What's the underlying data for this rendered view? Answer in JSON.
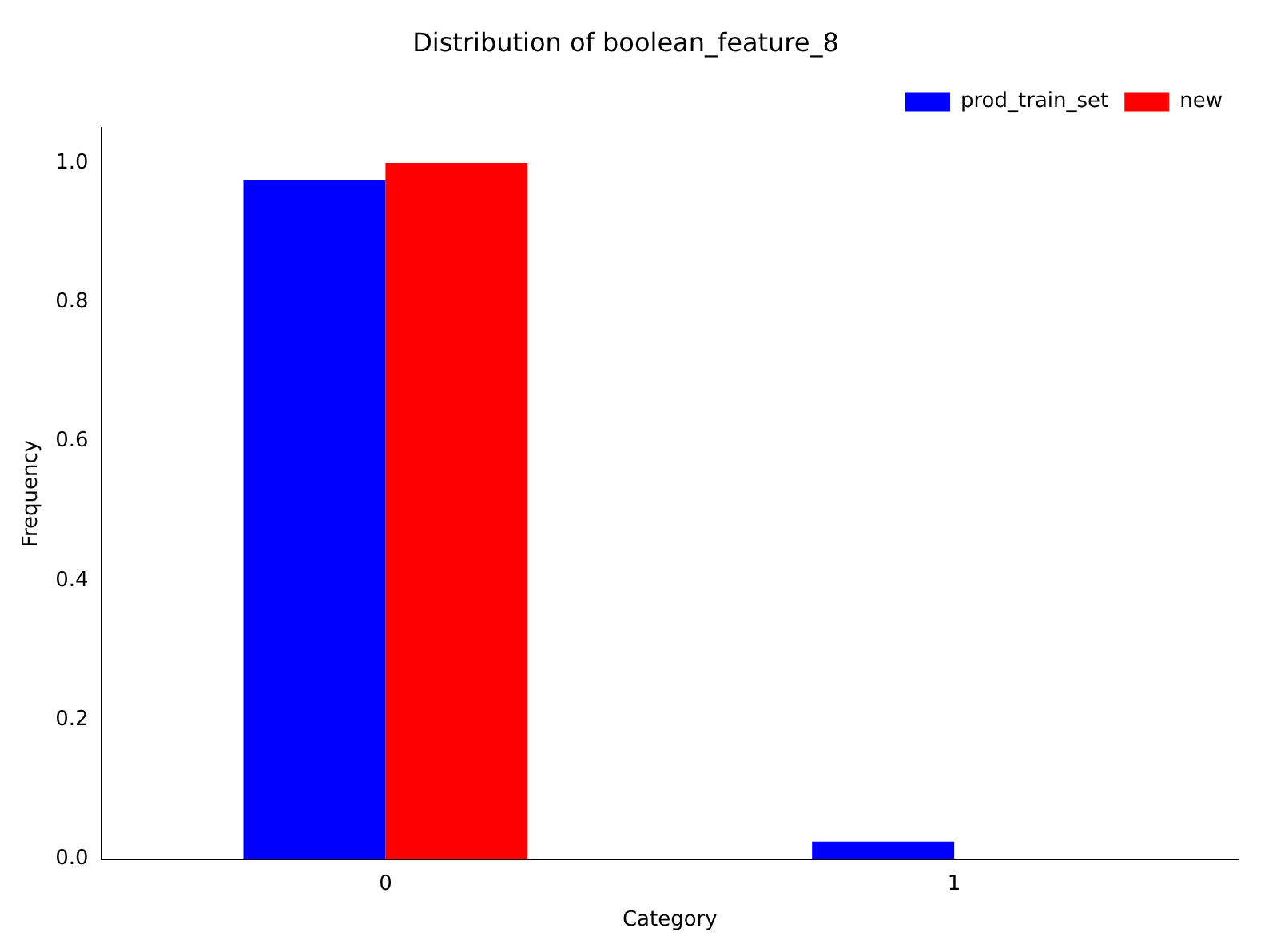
{
  "chart_data": {
    "type": "bar",
    "title": "Distribution of boolean_feature_8",
    "xlabel": "Category",
    "ylabel": "Frequency",
    "categories": [
      "0",
      "1"
    ],
    "series": [
      {
        "name": "prod_train_set",
        "color": "#0000ff",
        "values": [
          0.975,
          0.025
        ]
      },
      {
        "name": "new",
        "color": "#ff0000",
        "values": [
          1.0,
          0.0
        ]
      }
    ],
    "ylim": [
      0,
      1.05
    ],
    "yticks": [
      {
        "value": 0,
        "label": "0.0"
      },
      {
        "value": 0.2,
        "label": "0.2"
      },
      {
        "value": 0.4,
        "label": "0.4"
      },
      {
        "value": 0.6,
        "label": "0.6"
      },
      {
        "value": 0.8,
        "label": "0.8"
      },
      {
        "value": 1.0,
        "label": "1.0"
      }
    ],
    "grid": false,
    "legend": "top right"
  }
}
